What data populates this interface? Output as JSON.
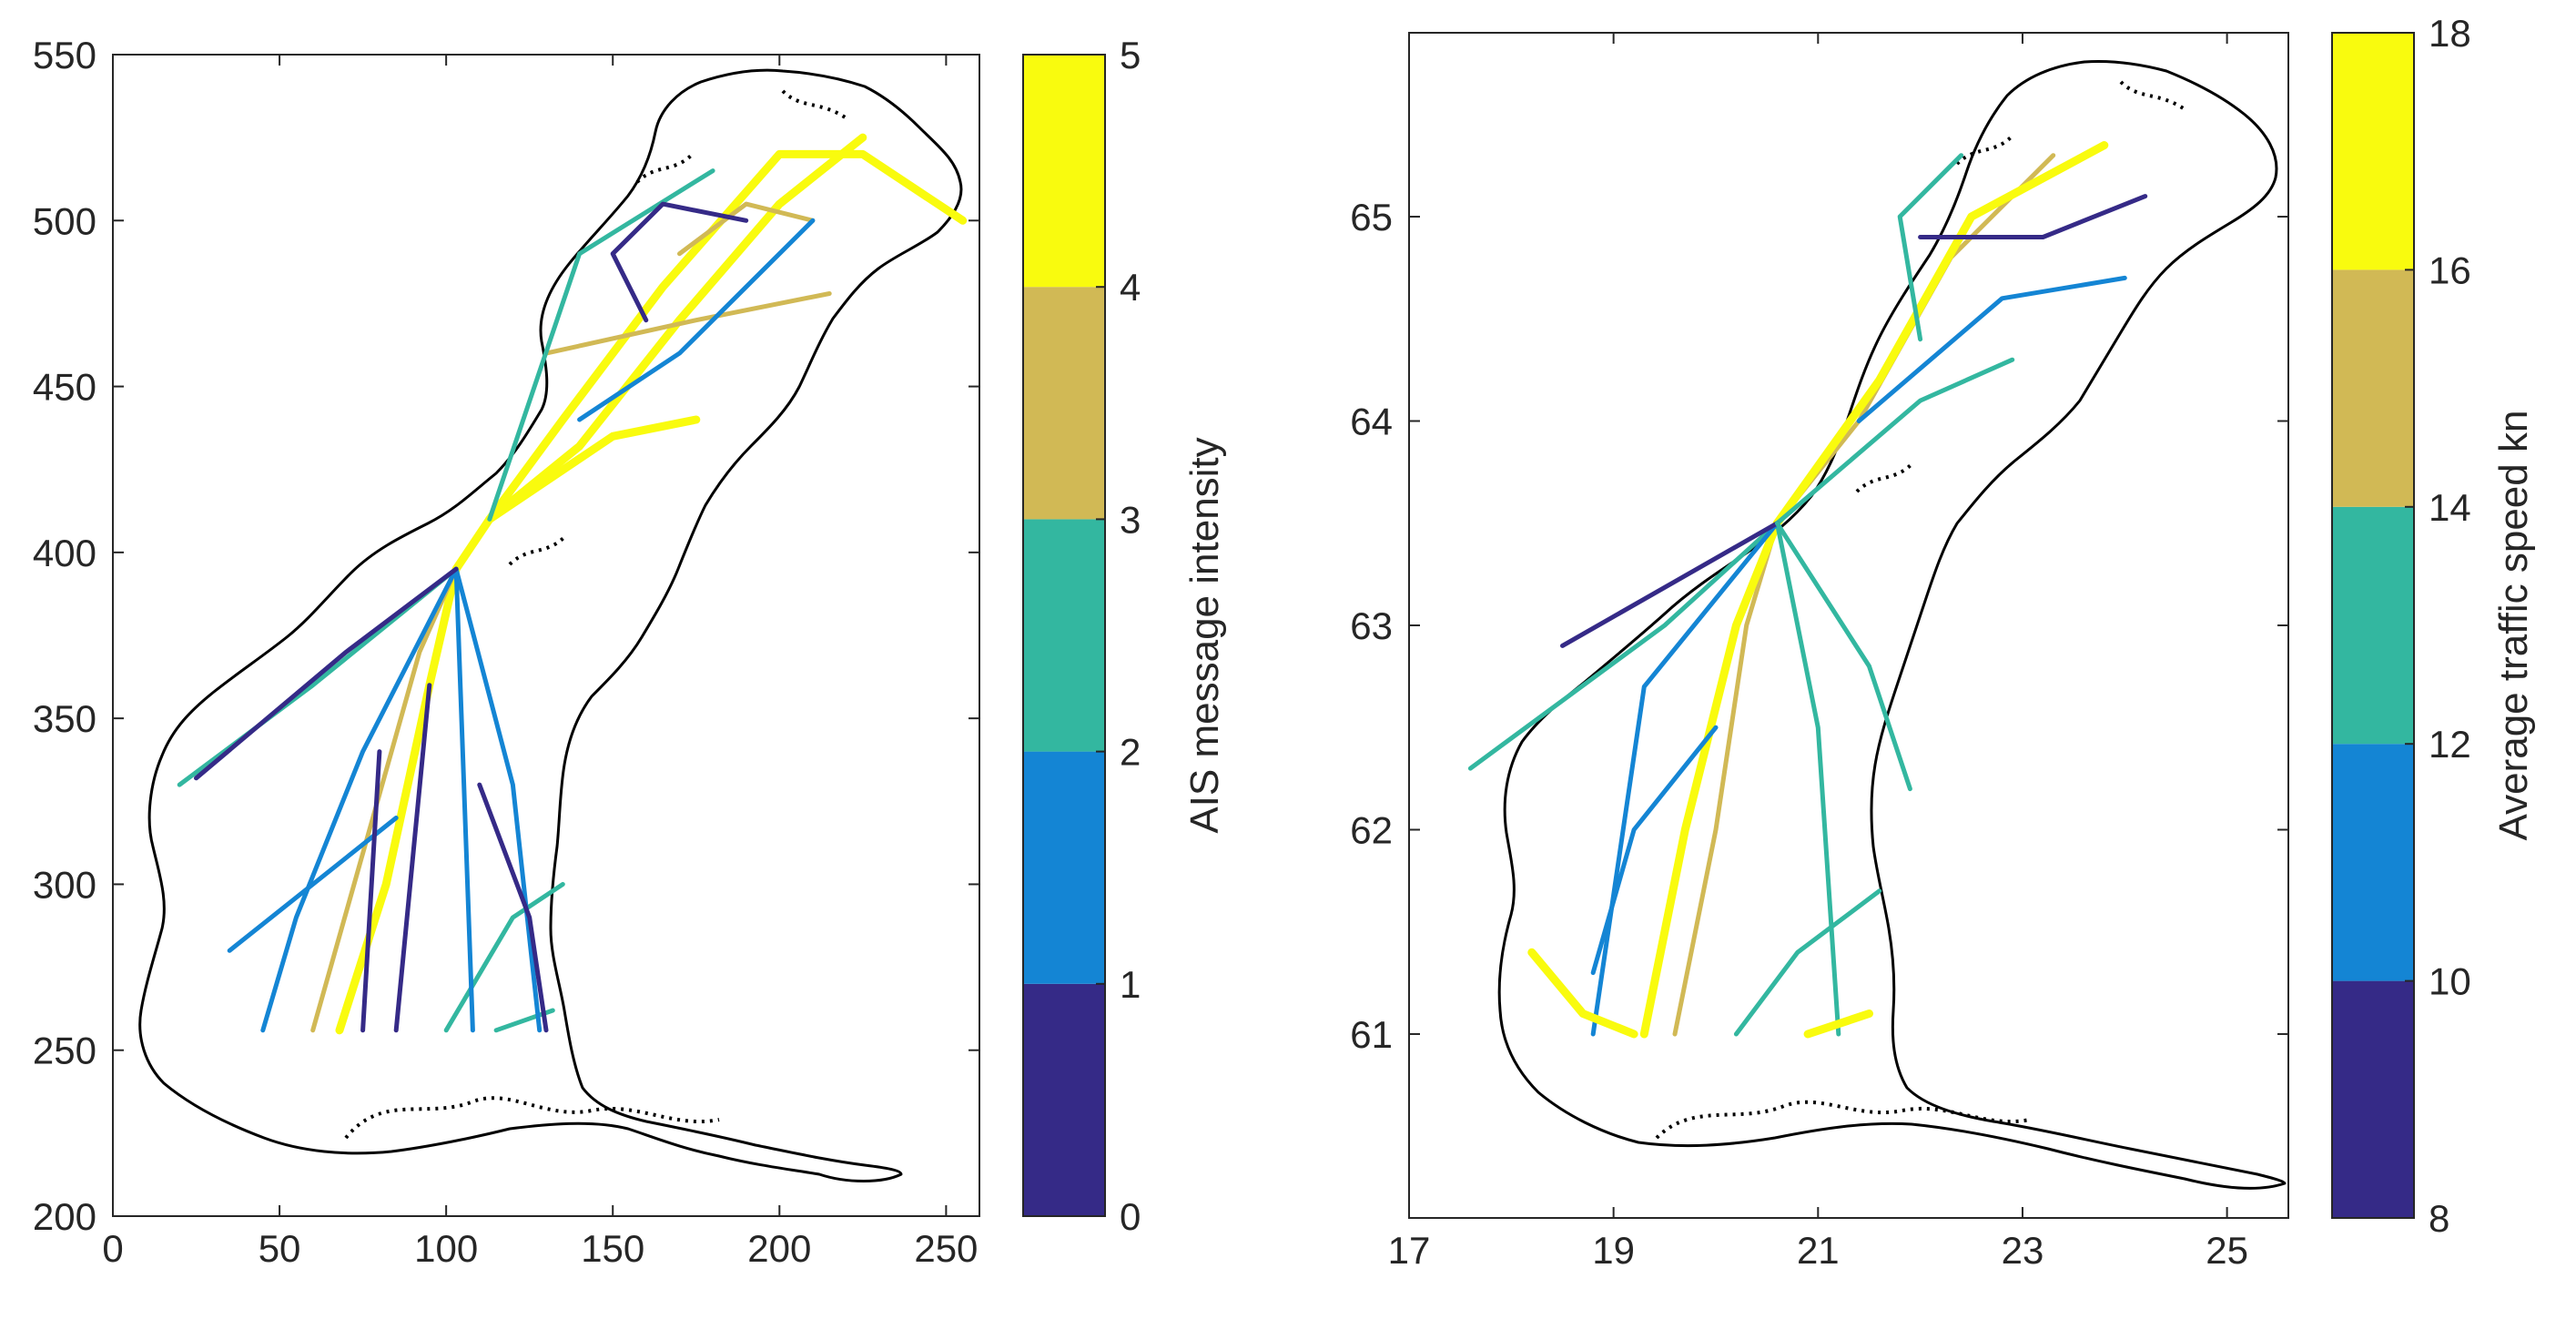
{
  "chart_data": [
    {
      "type": "heatmap",
      "title": "",
      "xlabel": "",
      "ylabel": "",
      "xlim": [
        0,
        260
      ],
      "ylim": [
        200,
        550
      ],
      "xticks": [
        "0",
        "50",
        "100",
        "150",
        "200",
        "250"
      ],
      "xtick_values": [
        0,
        50,
        100,
        150,
        200,
        250
      ],
      "yticks": [
        "200",
        "250",
        "300",
        "350",
        "400",
        "450",
        "500",
        "550"
      ],
      "ytick_values": [
        200,
        250,
        300,
        350,
        400,
        450,
        500,
        550
      ],
      "grid": false,
      "colorbar": {
        "label": "AIS message intensity",
        "range": [
          0,
          5
        ],
        "ticks": [
          "0",
          "1",
          "2",
          "3",
          "4",
          "5"
        ],
        "tick_values": [
          0,
          1,
          2,
          3,
          4,
          5
        ],
        "bins": [
          {
            "from": 0,
            "to": 1,
            "color": "#352A87"
          },
          {
            "from": 1,
            "to": 2,
            "color": "#1485D4"
          },
          {
            "from": 2,
            "to": 3,
            "color": "#33B7A0"
          },
          {
            "from": 3,
            "to": 4,
            "color": "#D1B955"
          },
          {
            "from": 4,
            "to": 5,
            "color": "#F9FB0E"
          }
        ]
      },
      "routes": [
        {
          "level": 4.6,
          "points": [
            [
              68,
              256
            ],
            [
              82,
              300
            ],
            [
              95,
              360
            ],
            [
              103,
              395
            ],
            [
              113,
              410
            ],
            [
              140,
              432
            ],
            [
              170,
              470
            ],
            [
              200,
              505
            ],
            [
              225,
              525
            ]
          ]
        },
        {
          "level": 4.5,
          "points": [
            [
              113,
              410
            ],
            [
              135,
              440
            ],
            [
              165,
              480
            ],
            [
              200,
              520
            ],
            [
              225,
              520
            ],
            [
              255,
              500
            ]
          ]
        },
        {
          "level": 4.3,
          "points": [
            [
              113,
              410
            ],
            [
              150,
              435
            ],
            [
              175,
              440
            ]
          ]
        },
        {
          "level": 3.8,
          "points": [
            [
              60,
              256
            ],
            [
              78,
              320
            ],
            [
              92,
              370
            ],
            [
              103,
              395
            ]
          ]
        },
        {
          "level": 3.6,
          "points": [
            [
              130,
              460
            ],
            [
              175,
              470
            ],
            [
              215,
              478
            ]
          ]
        },
        {
          "level": 3.2,
          "points": [
            [
              170,
              490
            ],
            [
              190,
              505
            ],
            [
              210,
              500
            ]
          ]
        },
        {
          "level": 2.4,
          "points": [
            [
              103,
              395
            ],
            [
              60,
              360
            ],
            [
              20,
              330
            ]
          ]
        },
        {
          "level": 2.2,
          "points": [
            [
              113,
              410
            ],
            [
              140,
              490
            ],
            [
              180,
              515
            ]
          ]
        },
        {
          "level": 2.1,
          "points": [
            [
              100,
              256
            ],
            [
              120,
              290
            ],
            [
              135,
              300
            ]
          ]
        },
        {
          "level": 2.5,
          "points": [
            [
              115,
              256
            ],
            [
              132,
              262
            ]
          ]
        },
        {
          "level": 1.6,
          "points": [
            [
              103,
              395
            ],
            [
              75,
              340
            ],
            [
              55,
              290
            ],
            [
              45,
              256
            ]
          ]
        },
        {
          "level": 1.5,
          "points": [
            [
              103,
              395
            ],
            [
              120,
              330
            ],
            [
              128,
              256
            ]
          ]
        },
        {
          "level": 1.4,
          "points": [
            [
              140,
              440
            ],
            [
              170,
              460
            ],
            [
              190,
              480
            ],
            [
              210,
              500
            ]
          ]
        },
        {
          "level": 1.3,
          "points": [
            [
              85,
              320
            ],
            [
              60,
              300
            ],
            [
              35,
              280
            ]
          ]
        },
        {
          "level": 1.2,
          "points": [
            [
              103,
              395
            ],
            [
              108,
              256
            ]
          ]
        },
        {
          "level": 0.6,
          "points": [
            [
              95,
              360
            ],
            [
              85,
              256
            ]
          ]
        },
        {
          "level": 0.5,
          "points": [
            [
              103,
              395
            ],
            [
              70,
              370
            ],
            [
              25,
              332
            ]
          ]
        },
        {
          "level": 0.7,
          "points": [
            [
              160,
              470
            ],
            [
              150,
              490
            ],
            [
              165,
              505
            ],
            [
              190,
              500
            ]
          ]
        },
        {
          "level": 0.5,
          "points": [
            [
              80,
              340
            ],
            [
              75,
              256
            ]
          ]
        },
        {
          "level": 0.4,
          "points": [
            [
              110,
              330
            ],
            [
              125,
              290
            ],
            [
              130,
              256
            ]
          ]
        }
      ]
    },
    {
      "type": "heatmap",
      "title": "",
      "xlabel": "",
      "ylabel": "",
      "xlim": [
        17,
        25.6
      ],
      "ylim": [
        60.1,
        65.9
      ],
      "xticks": [
        "17",
        "19",
        "21",
        "23",
        "25"
      ],
      "xtick_values": [
        17,
        19,
        21,
        23,
        25
      ],
      "yticks": [
        "61",
        "62",
        "63",
        "64",
        "65"
      ],
      "ytick_values": [
        61,
        62,
        63,
        64,
        65
      ],
      "grid": false,
      "colorbar": {
        "label": "Average traffic speed kn",
        "range": [
          8,
          18
        ],
        "ticks": [
          "8",
          "10",
          "12",
          "14",
          "16",
          "18"
        ],
        "tick_values": [
          8,
          10,
          12,
          14,
          16,
          18
        ],
        "bins": [
          {
            "from": 8,
            "to": 10,
            "color": "#352A87"
          },
          {
            "from": 10,
            "to": 12,
            "color": "#1485D4"
          },
          {
            "from": 12,
            "to": 14,
            "color": "#33B7A0"
          },
          {
            "from": 14,
            "to": 16,
            "color": "#D1B955"
          },
          {
            "from": 16,
            "to": 18,
            "color": "#F9FB0E"
          }
        ]
      },
      "routes": [
        {
          "level": 15.2,
          "points": [
            [
              19.6,
              61.0
            ],
            [
              20.0,
              62.0
            ],
            [
              20.3,
              63.0
            ],
            [
              20.6,
              63.5
            ],
            [
              21.4,
              64.0
            ],
            [
              22.3,
              64.8
            ],
            [
              23.3,
              65.3
            ]
          ]
        },
        {
          "level": 17.0,
          "points": [
            [
              19.3,
              61.0
            ],
            [
              19.7,
              62.0
            ],
            [
              20.2,
              63.0
            ],
            [
              20.6,
              63.5
            ]
          ]
        },
        {
          "level": 16.8,
          "points": [
            [
              20.6,
              63.5
            ],
            [
              21.6,
              64.2
            ],
            [
              22.5,
              65.0
            ],
            [
              23.8,
              65.35
            ]
          ]
        },
        {
          "level": 13.0,
          "points": [
            [
              20.6,
              63.5
            ],
            [
              19.5,
              63.0
            ],
            [
              17.6,
              62.3
            ]
          ]
        },
        {
          "level": 12.8,
          "points": [
            [
              20.6,
              63.5
            ],
            [
              21.0,
              62.5
            ],
            [
              21.2,
              61.0
            ]
          ]
        },
        {
          "level": 13.2,
          "points": [
            [
              20.6,
              63.5
            ],
            [
              22.0,
              64.1
            ],
            [
              22.9,
              64.3
            ]
          ]
        },
        {
          "level": 11.0,
          "points": [
            [
              20.6,
              63.5
            ],
            [
              19.3,
              62.7
            ],
            [
              18.8,
              61.0
            ]
          ]
        },
        {
          "level": 10.8,
          "points": [
            [
              21.4,
              64.0
            ],
            [
              22.8,
              64.6
            ],
            [
              24.0,
              64.7
            ]
          ]
        },
        {
          "level": 12.5,
          "points": [
            [
              20.2,
              61.0
            ],
            [
              20.8,
              61.4
            ],
            [
              21.6,
              61.7
            ]
          ]
        },
        {
          "level": 17.2,
          "points": [
            [
              20.9,
              61.0
            ],
            [
              21.5,
              61.1
            ]
          ]
        },
        {
          "level": 17.5,
          "points": [
            [
              18.2,
              61.4
            ],
            [
              18.7,
              61.1
            ],
            [
              19.2,
              61.0
            ]
          ]
        },
        {
          "level": 9.0,
          "points": [
            [
              20.6,
              63.5
            ],
            [
              18.5,
              62.9
            ]
          ]
        },
        {
          "level": 9.2,
          "points": [
            [
              22.0,
              64.9
            ],
            [
              23.2,
              64.9
            ],
            [
              24.2,
              65.1
            ]
          ]
        },
        {
          "level": 12.2,
          "points": [
            [
              22.0,
              64.4
            ],
            [
              21.8,
              65.0
            ],
            [
              22.4,
              65.3
            ]
          ]
        },
        {
          "level": 10.5,
          "points": [
            [
              20.0,
              62.5
            ],
            [
              19.2,
              62.0
            ],
            [
              18.8,
              61.3
            ]
          ]
        },
        {
          "level": 13.6,
          "points": [
            [
              20.6,
              63.5
            ],
            [
              21.5,
              62.8
            ],
            [
              21.9,
              62.2
            ]
          ]
        }
      ]
    }
  ]
}
